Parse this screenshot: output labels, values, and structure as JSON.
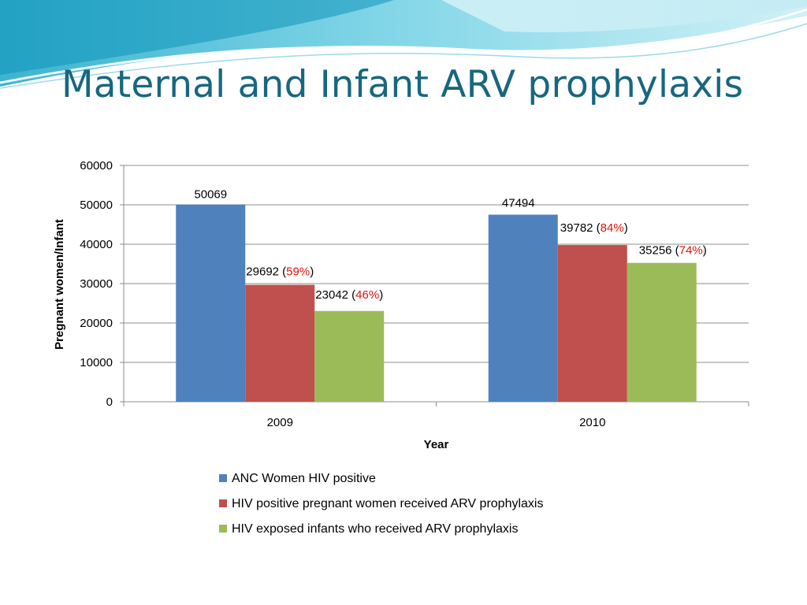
{
  "slide": {
    "title": "Maternal and Infant ARV prophylaxis"
  },
  "chart_data": {
    "type": "bar",
    "categories": [
      "2009",
      "2010"
    ],
    "series": [
      {
        "name": "ANC Women HIV positive",
        "color": "#4f81bd",
        "values": [
          50069,
          47494
        ],
        "labels": [
          "50069",
          "47494"
        ],
        "percent_labels": [
          "",
          ""
        ]
      },
      {
        "name": "HIV positive pregnant women received ARV prophylaxis",
        "color": "#c0504d",
        "values": [
          29692,
          39782
        ],
        "labels": [
          "29692",
          "39782"
        ],
        "percent_labels": [
          "59%",
          "84%"
        ]
      },
      {
        "name": "HIV exposed infants who received ARV prophylaxis",
        "color": "#9bbb59",
        "values": [
          23042,
          35256
        ],
        "labels": [
          "23042",
          "35256"
        ],
        "percent_labels": [
          "46%",
          "74%"
        ]
      }
    ],
    "xlabel": "Year",
    "ylabel": "Pregnant women/Infant",
    "ylim": [
      0,
      60000
    ],
    "yticks": [
      0,
      10000,
      20000,
      30000,
      40000,
      50000,
      60000
    ],
    "grid": true,
    "legend_position": "bottom"
  }
}
